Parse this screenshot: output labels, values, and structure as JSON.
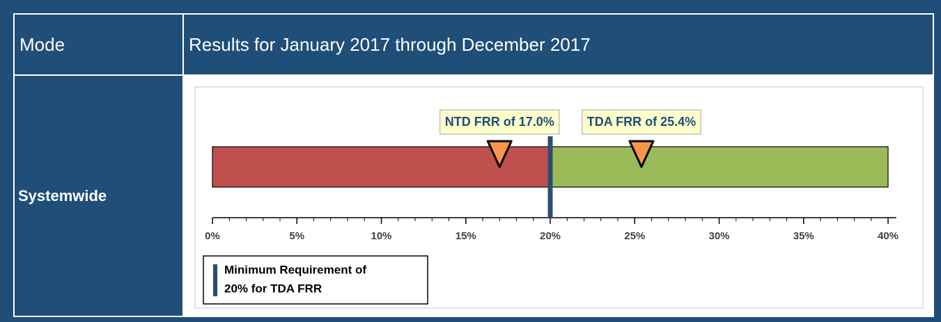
{
  "header": {
    "mode": "Mode",
    "results": "Results for January 2017 through December 2017"
  },
  "row": {
    "label": "Systemwide"
  },
  "chart_data": {
    "type": "bullet",
    "xlim": [
      0,
      40
    ],
    "xticks": [
      {
        "value": 0,
        "label": "0%"
      },
      {
        "value": 5,
        "label": "5%"
      },
      {
        "value": 10,
        "label": "10%"
      },
      {
        "value": 15,
        "label": "15%"
      },
      {
        "value": 20,
        "label": "20%"
      },
      {
        "value": 25,
        "label": "25%"
      },
      {
        "value": 30,
        "label": "30%"
      },
      {
        "value": 35,
        "label": "35%"
      },
      {
        "value": 40,
        "label": "40%"
      }
    ],
    "minor_xticks": [
      1,
      2,
      3,
      4,
      6,
      7,
      8,
      9,
      11,
      12,
      13,
      14,
      16,
      17,
      18,
      19,
      21,
      22,
      23,
      24,
      26,
      27,
      28,
      29,
      31,
      32,
      33,
      34,
      36,
      37,
      38,
      39
    ],
    "bands": [
      {
        "from": 0,
        "to": 20,
        "color": "#c0504d"
      },
      {
        "from": 20,
        "to": 40,
        "color": "#9bbb59"
      }
    ],
    "markers": [
      {
        "label": "NTD FRR of 17.0%",
        "value": 17.0,
        "color": "#f79646"
      },
      {
        "label": "TDA FRR of 25.4%",
        "value": 25.4,
        "color": "#f79646"
      }
    ],
    "threshold": {
      "value": 20,
      "color": "#2e4d6e",
      "legend": [
        "Minimum Requirement of",
        "20% for TDA FRR"
      ]
    }
  }
}
